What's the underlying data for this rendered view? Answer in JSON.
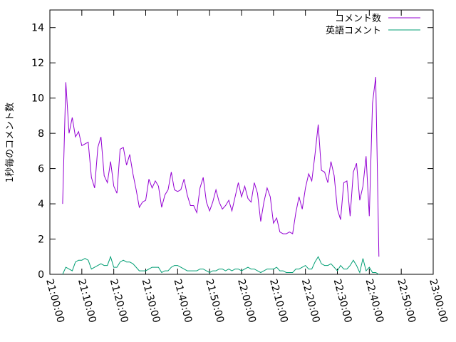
{
  "chart_data": {
    "type": "line",
    "ylabel": "1秒毎のコメント数",
    "xlabel": "",
    "title": "",
    "ylim": [
      0,
      15
    ],
    "xlim": [
      "21:00:00",
      "23:00:00"
    ],
    "yticks": [
      "0",
      "2",
      "4",
      "6",
      "8",
      "10",
      "12",
      "14"
    ],
    "xticks": [
      "21:00:00",
      "21:10:00",
      "21:20:00",
      "21:30:00",
      "21:40:00",
      "21:50:00",
      "22:00:00",
      "22:10:00",
      "22:20:00",
      "22:30:00",
      "22:40:00",
      "22:50:00",
      "23:00:00"
    ],
    "grid": false,
    "legend_position": "top-right",
    "series": [
      {
        "name": "コメント数",
        "color": "#9400d3",
        "points": [
          [
            "21:04:00",
            4.0
          ],
          [
            "21:05:00",
            10.9
          ],
          [
            "21:06:00",
            8.0
          ],
          [
            "21:07:00",
            8.9
          ],
          [
            "21:08:00",
            7.8
          ],
          [
            "21:09:00",
            8.1
          ],
          [
            "21:10:00",
            7.3
          ],
          [
            "21:11:00",
            7.4
          ],
          [
            "21:12:00",
            7.5
          ],
          [
            "21:13:00",
            5.5
          ],
          [
            "21:14:00",
            4.9
          ],
          [
            "21:15:00",
            7.2
          ],
          [
            "21:16:00",
            7.8
          ],
          [
            "21:17:00",
            5.6
          ],
          [
            "21:18:00",
            5.2
          ],
          [
            "21:19:00",
            6.4
          ],
          [
            "21:20:00",
            5.0
          ],
          [
            "21:21:00",
            4.6
          ],
          [
            "21:22:00",
            7.1
          ],
          [
            "21:23:00",
            7.2
          ],
          [
            "21:24:00",
            6.2
          ],
          [
            "21:25:00",
            6.8
          ],
          [
            "21:26:00",
            5.7
          ],
          [
            "21:27:00",
            4.8
          ],
          [
            "21:28:00",
            3.8
          ],
          [
            "21:29:00",
            4.1
          ],
          [
            "21:30:00",
            4.2
          ],
          [
            "21:31:00",
            5.4
          ],
          [
            "21:32:00",
            4.9
          ],
          [
            "21:33:00",
            5.3
          ],
          [
            "21:34:00",
            5.0
          ],
          [
            "21:35:00",
            3.8
          ],
          [
            "21:36:00",
            4.5
          ],
          [
            "21:37:00",
            4.8
          ],
          [
            "21:38:00",
            5.8
          ],
          [
            "21:39:00",
            4.8
          ],
          [
            "21:40:00",
            4.7
          ],
          [
            "21:41:00",
            4.8
          ],
          [
            "21:42:00",
            5.4
          ],
          [
            "21:43:00",
            4.5
          ],
          [
            "21:44:00",
            3.9
          ],
          [
            "21:45:00",
            3.9
          ],
          [
            "21:46:00",
            3.5
          ],
          [
            "21:47:00",
            4.9
          ],
          [
            "21:48:00",
            5.5
          ],
          [
            "21:49:00",
            4.1
          ],
          [
            "21:50:00",
            3.6
          ],
          [
            "21:51:00",
            4.1
          ],
          [
            "21:52:00",
            4.8
          ],
          [
            "21:53:00",
            4.1
          ],
          [
            "21:54:00",
            3.7
          ],
          [
            "21:55:00",
            3.9
          ],
          [
            "21:56:00",
            4.2
          ],
          [
            "21:57:00",
            3.6
          ],
          [
            "21:58:00",
            4.4
          ],
          [
            "21:59:00",
            5.2
          ],
          [
            "22:00:00",
            4.4
          ],
          [
            "22:01:00",
            5.0
          ],
          [
            "22:02:00",
            4.3
          ],
          [
            "22:03:00",
            4.1
          ],
          [
            "22:04:00",
            5.2
          ],
          [
            "22:05:00",
            4.6
          ],
          [
            "22:06:00",
            3.0
          ],
          [
            "22:07:00",
            4.1
          ],
          [
            "22:08:00",
            4.9
          ],
          [
            "22:09:00",
            4.4
          ],
          [
            "22:10:00",
            2.9
          ],
          [
            "22:11:00",
            3.2
          ],
          [
            "22:12:00",
            2.4
          ],
          [
            "22:13:00",
            2.3
          ],
          [
            "22:14:00",
            2.3
          ],
          [
            "22:15:00",
            2.4
          ],
          [
            "22:16:00",
            2.3
          ],
          [
            "22:17:00",
            3.5
          ],
          [
            "22:18:00",
            4.4
          ],
          [
            "22:19:00",
            3.7
          ],
          [
            "22:20:00",
            4.9
          ],
          [
            "22:21:00",
            5.7
          ],
          [
            "22:22:00",
            5.3
          ],
          [
            "22:23:00",
            6.8
          ],
          [
            "22:24:00",
            8.5
          ],
          [
            "22:25:00",
            5.9
          ],
          [
            "22:26:00",
            5.8
          ],
          [
            "22:27:00",
            5.2
          ],
          [
            "22:28:00",
            6.4
          ],
          [
            "22:29:00",
            5.6
          ],
          [
            "22:30:00",
            3.7
          ],
          [
            "22:31:00",
            3.1
          ],
          [
            "22:32:00",
            5.2
          ],
          [
            "22:33:00",
            5.3
          ],
          [
            "22:34:00",
            3.3
          ],
          [
            "22:35:00",
            5.8
          ],
          [
            "22:36:00",
            6.3
          ],
          [
            "22:37:00",
            4.2
          ],
          [
            "22:38:00",
            5.0
          ],
          [
            "22:39:00",
            6.7
          ],
          [
            "22:40:00",
            3.3
          ],
          [
            "22:41:00",
            9.7
          ],
          [
            "22:42:00",
            11.2
          ],
          [
            "22:43:00",
            1.0
          ]
        ]
      },
      {
        "name": "英語コメント",
        "color": "#009e73",
        "points": [
          [
            "21:04:00",
            0.0
          ],
          [
            "21:05:00",
            0.4
          ],
          [
            "21:06:00",
            0.3
          ],
          [
            "21:07:00",
            0.2
          ],
          [
            "21:08:00",
            0.7
          ],
          [
            "21:09:00",
            0.8
          ],
          [
            "21:10:00",
            0.8
          ],
          [
            "21:11:00",
            0.9
          ],
          [
            "21:12:00",
            0.8
          ],
          [
            "21:13:00",
            0.3
          ],
          [
            "21:14:00",
            0.4
          ],
          [
            "21:15:00",
            0.5
          ],
          [
            "21:16:00",
            0.6
          ],
          [
            "21:17:00",
            0.5
          ],
          [
            "21:18:00",
            0.5
          ],
          [
            "21:19:00",
            1.0
          ],
          [
            "21:20:00",
            0.4
          ],
          [
            "21:21:00",
            0.4
          ],
          [
            "21:22:00",
            0.7
          ],
          [
            "21:23:00",
            0.8
          ],
          [
            "21:24:00",
            0.7
          ],
          [
            "21:25:00",
            0.7
          ],
          [
            "21:26:00",
            0.6
          ],
          [
            "21:27:00",
            0.4
          ],
          [
            "21:28:00",
            0.2
          ],
          [
            "21:29:00",
            0.2
          ],
          [
            "21:30:00",
            0.2
          ],
          [
            "21:31:00",
            0.3
          ],
          [
            "21:32:00",
            0.4
          ],
          [
            "21:33:00",
            0.4
          ],
          [
            "21:34:00",
            0.4
          ],
          [
            "21:35:00",
            0.1
          ],
          [
            "21:36:00",
            0.2
          ],
          [
            "21:37:00",
            0.2
          ],
          [
            "21:38:00",
            0.4
          ],
          [
            "21:39:00",
            0.5
          ],
          [
            "21:40:00",
            0.5
          ],
          [
            "21:41:00",
            0.4
          ],
          [
            "21:42:00",
            0.3
          ],
          [
            "21:43:00",
            0.2
          ],
          [
            "21:44:00",
            0.2
          ],
          [
            "21:45:00",
            0.2
          ],
          [
            "21:46:00",
            0.2
          ],
          [
            "21:47:00",
            0.3
          ],
          [
            "21:48:00",
            0.3
          ],
          [
            "21:49:00",
            0.2
          ],
          [
            "21:50:00",
            0.1
          ],
          [
            "21:51:00",
            0.2
          ],
          [
            "21:52:00",
            0.2
          ],
          [
            "21:53:00",
            0.3
          ],
          [
            "21:54:00",
            0.3
          ],
          [
            "21:55:00",
            0.2
          ],
          [
            "21:56:00",
            0.3
          ],
          [
            "21:57:00",
            0.2
          ],
          [
            "21:58:00",
            0.3
          ],
          [
            "21:59:00",
            0.3
          ],
          [
            "22:00:00",
            0.2
          ],
          [
            "22:01:00",
            0.3
          ],
          [
            "22:02:00",
            0.4
          ],
          [
            "22:03:00",
            0.3
          ],
          [
            "22:04:00",
            0.3
          ],
          [
            "22:05:00",
            0.2
          ],
          [
            "22:06:00",
            0.1
          ],
          [
            "22:07:00",
            0.2
          ],
          [
            "22:08:00",
            0.3
          ],
          [
            "22:09:00",
            0.3
          ],
          [
            "22:10:00",
            0.3
          ],
          [
            "22:11:00",
            0.4
          ],
          [
            "22:12:00",
            0.2
          ],
          [
            "22:13:00",
            0.2
          ],
          [
            "22:14:00",
            0.1
          ],
          [
            "22:15:00",
            0.1
          ],
          [
            "22:16:00",
            0.1
          ],
          [
            "22:17:00",
            0.3
          ],
          [
            "22:18:00",
            0.3
          ],
          [
            "22:19:00",
            0.4
          ],
          [
            "22:20:00",
            0.5
          ],
          [
            "22:21:00",
            0.3
          ],
          [
            "22:22:00",
            0.3
          ],
          [
            "22:23:00",
            0.7
          ],
          [
            "22:24:00",
            1.0
          ],
          [
            "22:25:00",
            0.6
          ],
          [
            "22:26:00",
            0.5
          ],
          [
            "22:27:00",
            0.5
          ],
          [
            "22:28:00",
            0.6
          ],
          [
            "22:29:00",
            0.4
          ],
          [
            "22:30:00",
            0.2
          ],
          [
            "22:31:00",
            0.5
          ],
          [
            "22:32:00",
            0.3
          ],
          [
            "22:33:00",
            0.3
          ],
          [
            "22:34:00",
            0.5
          ],
          [
            "22:35:00",
            0.8
          ],
          [
            "22:36:00",
            0.5
          ],
          [
            "22:37:00",
            0.1
          ],
          [
            "22:38:00",
            0.9
          ],
          [
            "22:39:00",
            0.2
          ],
          [
            "22:40:00",
            0.4
          ],
          [
            "22:41:00",
            0.1
          ],
          [
            "22:42:00",
            0.1
          ],
          [
            "22:43:00",
            0.0
          ]
        ]
      }
    ]
  }
}
